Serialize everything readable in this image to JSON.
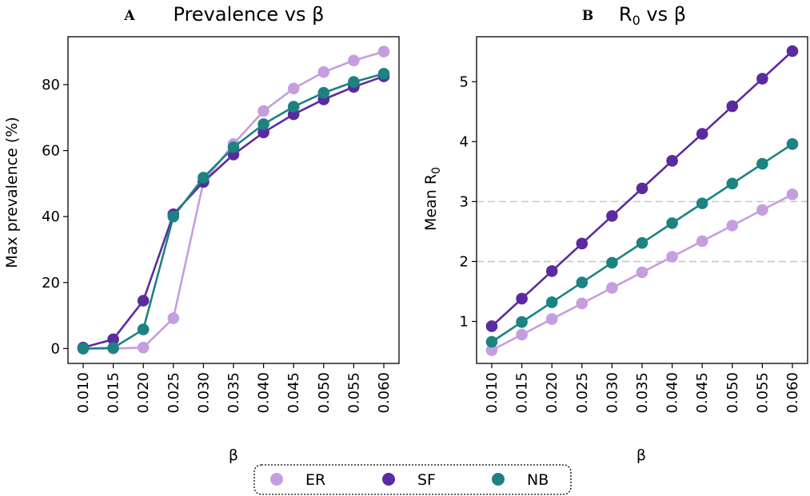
{
  "figure": {
    "legend": {
      "entries": [
        {
          "label": "ER",
          "color": "#c59ee0"
        },
        {
          "label": "SF",
          "color": "#5b2aa0"
        },
        {
          "label": "NB",
          "color": "#1c8282"
        }
      ]
    }
  },
  "chart_data": [
    {
      "type": "line",
      "panel_letter": "A",
      "title": "Prevalence vs β",
      "xlabel": "β",
      "ylabel": "Max prevalence (%)",
      "categories": [
        "0.010",
        "0.015",
        "0.020",
        "0.025",
        "0.030",
        "0.035",
        "0.040",
        "0.045",
        "0.050",
        "0.055",
        "0.060"
      ],
      "y_ticks": [
        0,
        20,
        40,
        60,
        80
      ],
      "ylim": [
        -4.5,
        94.5
      ],
      "ref_lines": [],
      "series": [
        {
          "name": "ER",
          "color": "#c59ee0",
          "values": [
            0.0,
            0.0,
            0.3,
            9.2,
            50.5,
            62.0,
            72.0,
            78.8,
            83.8,
            87.3,
            90.0
          ]
        },
        {
          "name": "SF",
          "color": "#5b2aa0",
          "values": [
            0.3,
            2.8,
            14.5,
            40.7,
            50.5,
            58.8,
            65.5,
            71.0,
            75.5,
            79.3,
            82.5
          ]
        },
        {
          "name": "NB",
          "color": "#1c8282",
          "values": [
            0.0,
            0.2,
            5.8,
            40.0,
            51.8,
            61.0,
            68.0,
            73.3,
            77.5,
            80.8,
            83.3
          ]
        }
      ]
    },
    {
      "type": "line",
      "panel_letter": "B",
      "title_main": "R",
      "title_sub": "0",
      "title_rest": " vs β",
      "xlabel": "β",
      "ylabel_main": "Mean R",
      "ylabel_sub": "0",
      "categories": [
        "0.010",
        "0.015",
        "0.020",
        "0.025",
        "0.030",
        "0.035",
        "0.040",
        "0.045",
        "0.050",
        "0.055",
        "0.060"
      ],
      "y_ticks": [
        1,
        2,
        3,
        4,
        5
      ],
      "ylim": [
        0.3,
        5.75
      ],
      "ref_lines": [
        2,
        3
      ],
      "series": [
        {
          "name": "ER",
          "color": "#c59ee0",
          "values": [
            0.52,
            0.78,
            1.04,
            1.3,
            1.56,
            1.82,
            2.08,
            2.34,
            2.6,
            2.86,
            3.12
          ]
        },
        {
          "name": "SF",
          "color": "#5b2aa0",
          "values": [
            0.92,
            1.38,
            1.84,
            2.3,
            2.76,
            3.22,
            3.68,
            4.13,
            4.59,
            5.05,
            5.51
          ]
        },
        {
          "name": "NB",
          "color": "#1c8282",
          "values": [
            0.66,
            0.99,
            1.32,
            1.65,
            1.98,
            2.31,
            2.64,
            2.97,
            3.3,
            3.63,
            3.96
          ]
        }
      ]
    }
  ]
}
